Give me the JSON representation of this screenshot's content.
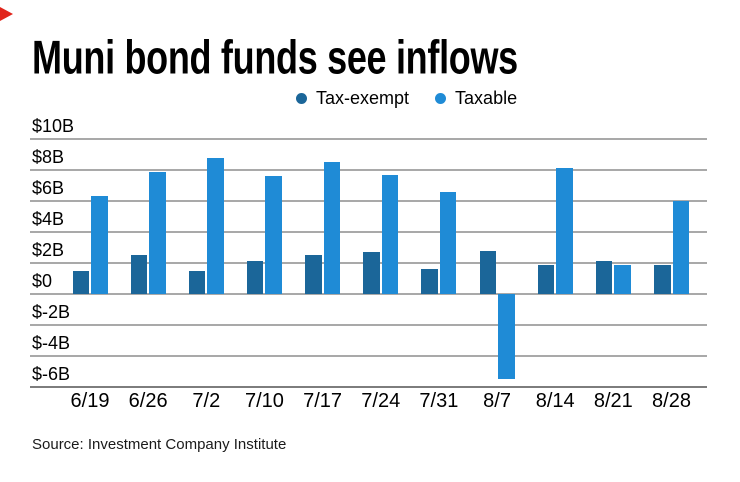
{
  "brand": {
    "triangle_color": "#e1251b"
  },
  "title": "Muni bond funds see inflows",
  "legend": [
    {
      "label": "Tax-exempt",
      "color": "#1b6699"
    },
    {
      "label": "Taxable",
      "color": "#1f8bd6"
    }
  ],
  "source": "Source: Investment Company Institute",
  "chart_data": {
    "type": "bar",
    "title": "Muni bond funds see inflows",
    "categories": [
      "6/19",
      "6/26",
      "7/2",
      "7/10",
      "7/17",
      "7/24",
      "7/31",
      "8/7",
      "8/14",
      "8/21",
      "8/28"
    ],
    "series": [
      {
        "name": "Tax-exempt",
        "color": "#1b6699",
        "values": [
          1.5,
          2.5,
          1.5,
          2.1,
          2.5,
          2.7,
          1.6,
          2.8,
          1.9,
          2.1,
          1.9
        ]
      },
      {
        "name": "Taxable",
        "color": "#1f8bd6",
        "values": [
          6.3,
          7.9,
          8.8,
          7.6,
          8.5,
          7.7,
          6.6,
          -5.5,
          8.1,
          1.9,
          6.0
        ]
      }
    ],
    "units": "billions of dollars",
    "xlabel": "",
    "ylabel": "",
    "ylim": [
      -6,
      10
    ],
    "ytick_values": [
      10,
      8,
      6,
      4,
      2,
      0,
      -2,
      -4,
      -6
    ],
    "ytick_labels": [
      "$10B",
      "$8B",
      "$6B",
      "$4B",
      "$2B",
      "$0",
      "$-2B",
      "$-4B",
      "$-6B"
    ],
    "grid": true,
    "legend_position": "top",
    "source": "Source: Investment Company Institute"
  }
}
